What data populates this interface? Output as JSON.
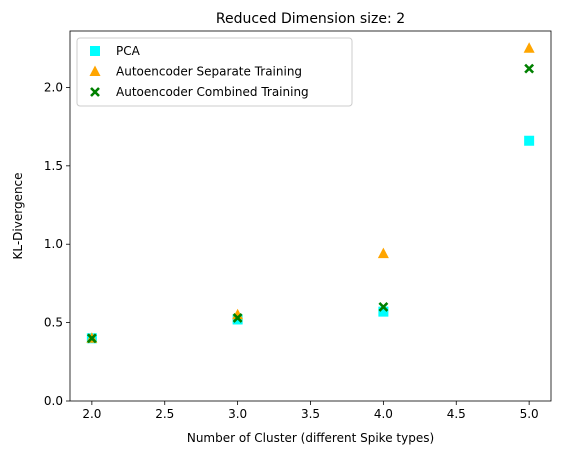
{
  "chart_data": {
    "type": "scatter",
    "title": "Reduced Dimension size: 2",
    "xlabel": "Number of Cluster (different Spike types)",
    "ylabel": "KL-Divergence",
    "xlim": [
      1.85,
      5.15
    ],
    "ylim": [
      0.0,
      2.36
    ],
    "xticks": [
      2.0,
      2.5,
      3.0,
      3.5,
      4.0,
      4.5,
      5.0
    ],
    "xtick_labels": [
      "2.0",
      "2.5",
      "3.0",
      "3.5",
      "4.0",
      "4.5",
      "5.0"
    ],
    "yticks": [
      0.0,
      0.5,
      1.0,
      1.5,
      2.0
    ],
    "ytick_labels": [
      "0.0",
      "0.5",
      "1.0",
      "1.5",
      "2.0"
    ],
    "grid": false,
    "legend_position": "top-left",
    "series": [
      {
        "name": "PCA",
        "marker": "square",
        "color": "#00ffff",
        "x": [
          2,
          3,
          4,
          5
        ],
        "y": [
          0.4,
          0.52,
          0.57,
          1.66
        ]
      },
      {
        "name": "Autoencoder Separate Training",
        "marker": "triangle",
        "color": "#ffa500",
        "x": [
          2,
          3,
          4,
          5
        ],
        "y": [
          0.4,
          0.55,
          0.94,
          2.25
        ]
      },
      {
        "name": "Autoencoder Combined Training",
        "marker": "x",
        "color": "#008000",
        "x": [
          2,
          3,
          4,
          5
        ],
        "y": [
          0.4,
          0.53,
          0.6,
          2.12
        ]
      }
    ]
  }
}
